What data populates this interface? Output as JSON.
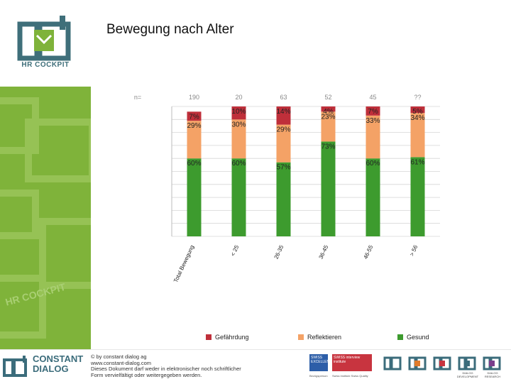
{
  "header": {
    "title": "Bewegung nach Alter",
    "brand_logo_text": "HR COCKPIT"
  },
  "colors": {
    "green": "#3d9b2e",
    "orange": "#f4a266",
    "red": "#bf2f3a",
    "side_green": "#7fb33a",
    "brand_teal": "#3b6c7b"
  },
  "chart_data": {
    "type": "bar",
    "stacked": true,
    "categories": [
      "Total Bewegung",
      "< 25",
      "26-35",
      "36-45",
      "46-55",
      "> 56"
    ],
    "top_labels": [
      "n=",
      "190",
      "20",
      "63",
      "52",
      "45",
      "??"
    ],
    "series": [
      {
        "name": "Gesund",
        "color": "#3d9b2e",
        "values": [
          60,
          60,
          57,
          73,
          60,
          61
        ],
        "labels": [
          "60%",
          "60%",
          "57%",
          "73%",
          "60%",
          "61%"
        ]
      },
      {
        "name": "Reflektieren",
        "color": "#f4a266",
        "values": [
          29,
          30,
          29,
          23,
          33,
          34
        ],
        "labels": [
          "29%",
          "30%",
          "29%",
          "23%",
          "33%",
          "34%"
        ]
      },
      {
        "name": "Gefährdung",
        "color": "#bf2f3a",
        "values": [
          7,
          10,
          14,
          4,
          7,
          5
        ],
        "labels": [
          "7%",
          "10%",
          "14%",
          "4%",
          "7%",
          "5%"
        ]
      }
    ],
    "ylim": [
      0,
      100
    ],
    "grid": true,
    "legend_position": "bottom"
  },
  "legend": [
    {
      "label": "Gefährdung",
      "color": "#bf2f3a"
    },
    {
      "label": "Reflektieren",
      "color": "#f4a266"
    },
    {
      "label": "Gesund",
      "color": "#3d9b2e"
    }
  ],
  "footer": {
    "brand_line1": "CONSTANT",
    "brand_line2": "DIALOG",
    "copyright_lines": [
      "© by constant dialog ag",
      "www.constant-dialog.com",
      "Dieses Dokument darf weder in elektronischer noch schriftlicher",
      "Form vervielfältigt oder weitergegeben werden."
    ],
    "badge_blue": "SWISS EXCELLENCE",
    "badge_red": "SWISS interview institute",
    "badge_blue_caption": "Bezügsperson",
    "badge_red_caption": "Swiss Institute  Swiss Quality",
    "mini_logos": [
      {
        "caption": "",
        "color": "#3b6c7b"
      },
      {
        "caption": "",
        "color": "#e07b2c"
      },
      {
        "caption": "",
        "color": "#c8343f"
      },
      {
        "caption": "DIALOG DEVELOPMENT",
        "color": "#3b6c7b"
      },
      {
        "caption": "DIALOG RESEARCH",
        "color": "#7a3e8c"
      }
    ]
  }
}
